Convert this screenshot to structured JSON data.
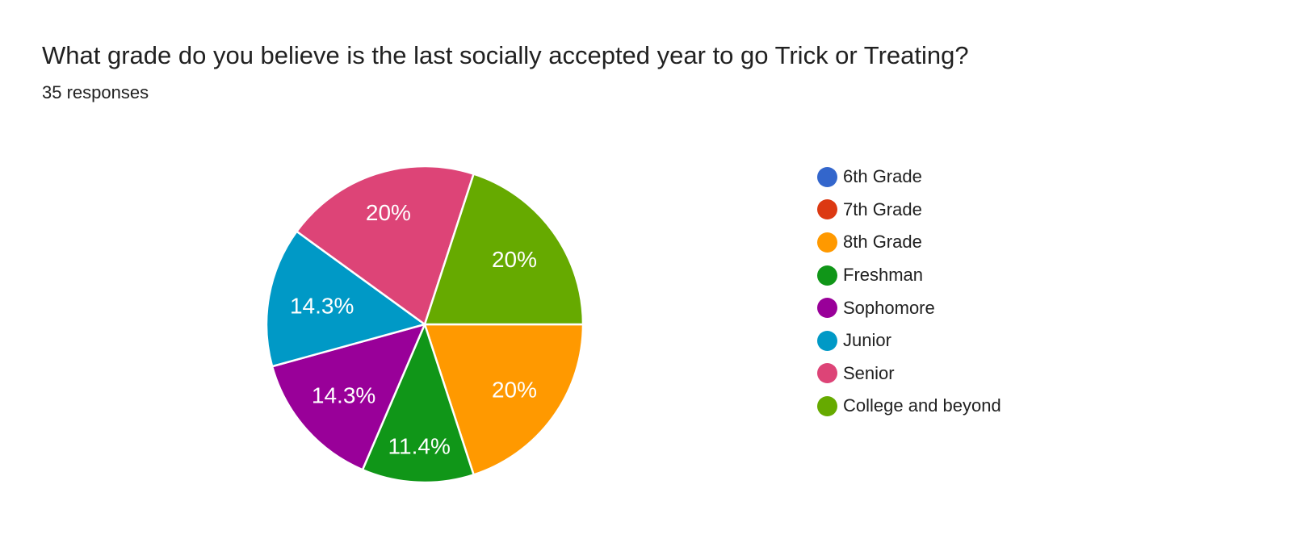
{
  "header": {
    "title": "What grade do you believe is the last socially accepted year to go Trick or Treating?",
    "subtitle": "35 responses"
  },
  "chart_data": {
    "type": "pie",
    "title": "What grade do you believe is the last socially accepted year to go Trick or Treating?",
    "subtitle": "35 responses",
    "total_responses": 35,
    "categories": [
      "6th Grade",
      "7th Grade",
      "8th Grade",
      "Freshman",
      "Sophomore",
      "Junior",
      "Senior",
      "College and beyond"
    ],
    "values": [
      0,
      0,
      7,
      4,
      5,
      5,
      7,
      7
    ],
    "percent_labels": [
      "",
      "",
      "20%",
      "11.4%",
      "14.3%",
      "14.3%",
      "20%",
      "20%"
    ],
    "colors": [
      "#3366cc",
      "#dc3912",
      "#ff9900",
      "#109618",
      "#990099",
      "#0099c6",
      "#dd4477",
      "#66aa00"
    ],
    "legend_position": "right",
    "start_angle_deg": 90,
    "direction": "clockwise",
    "slice_border_color": "#ffffff",
    "label_color": "#ffffff"
  }
}
